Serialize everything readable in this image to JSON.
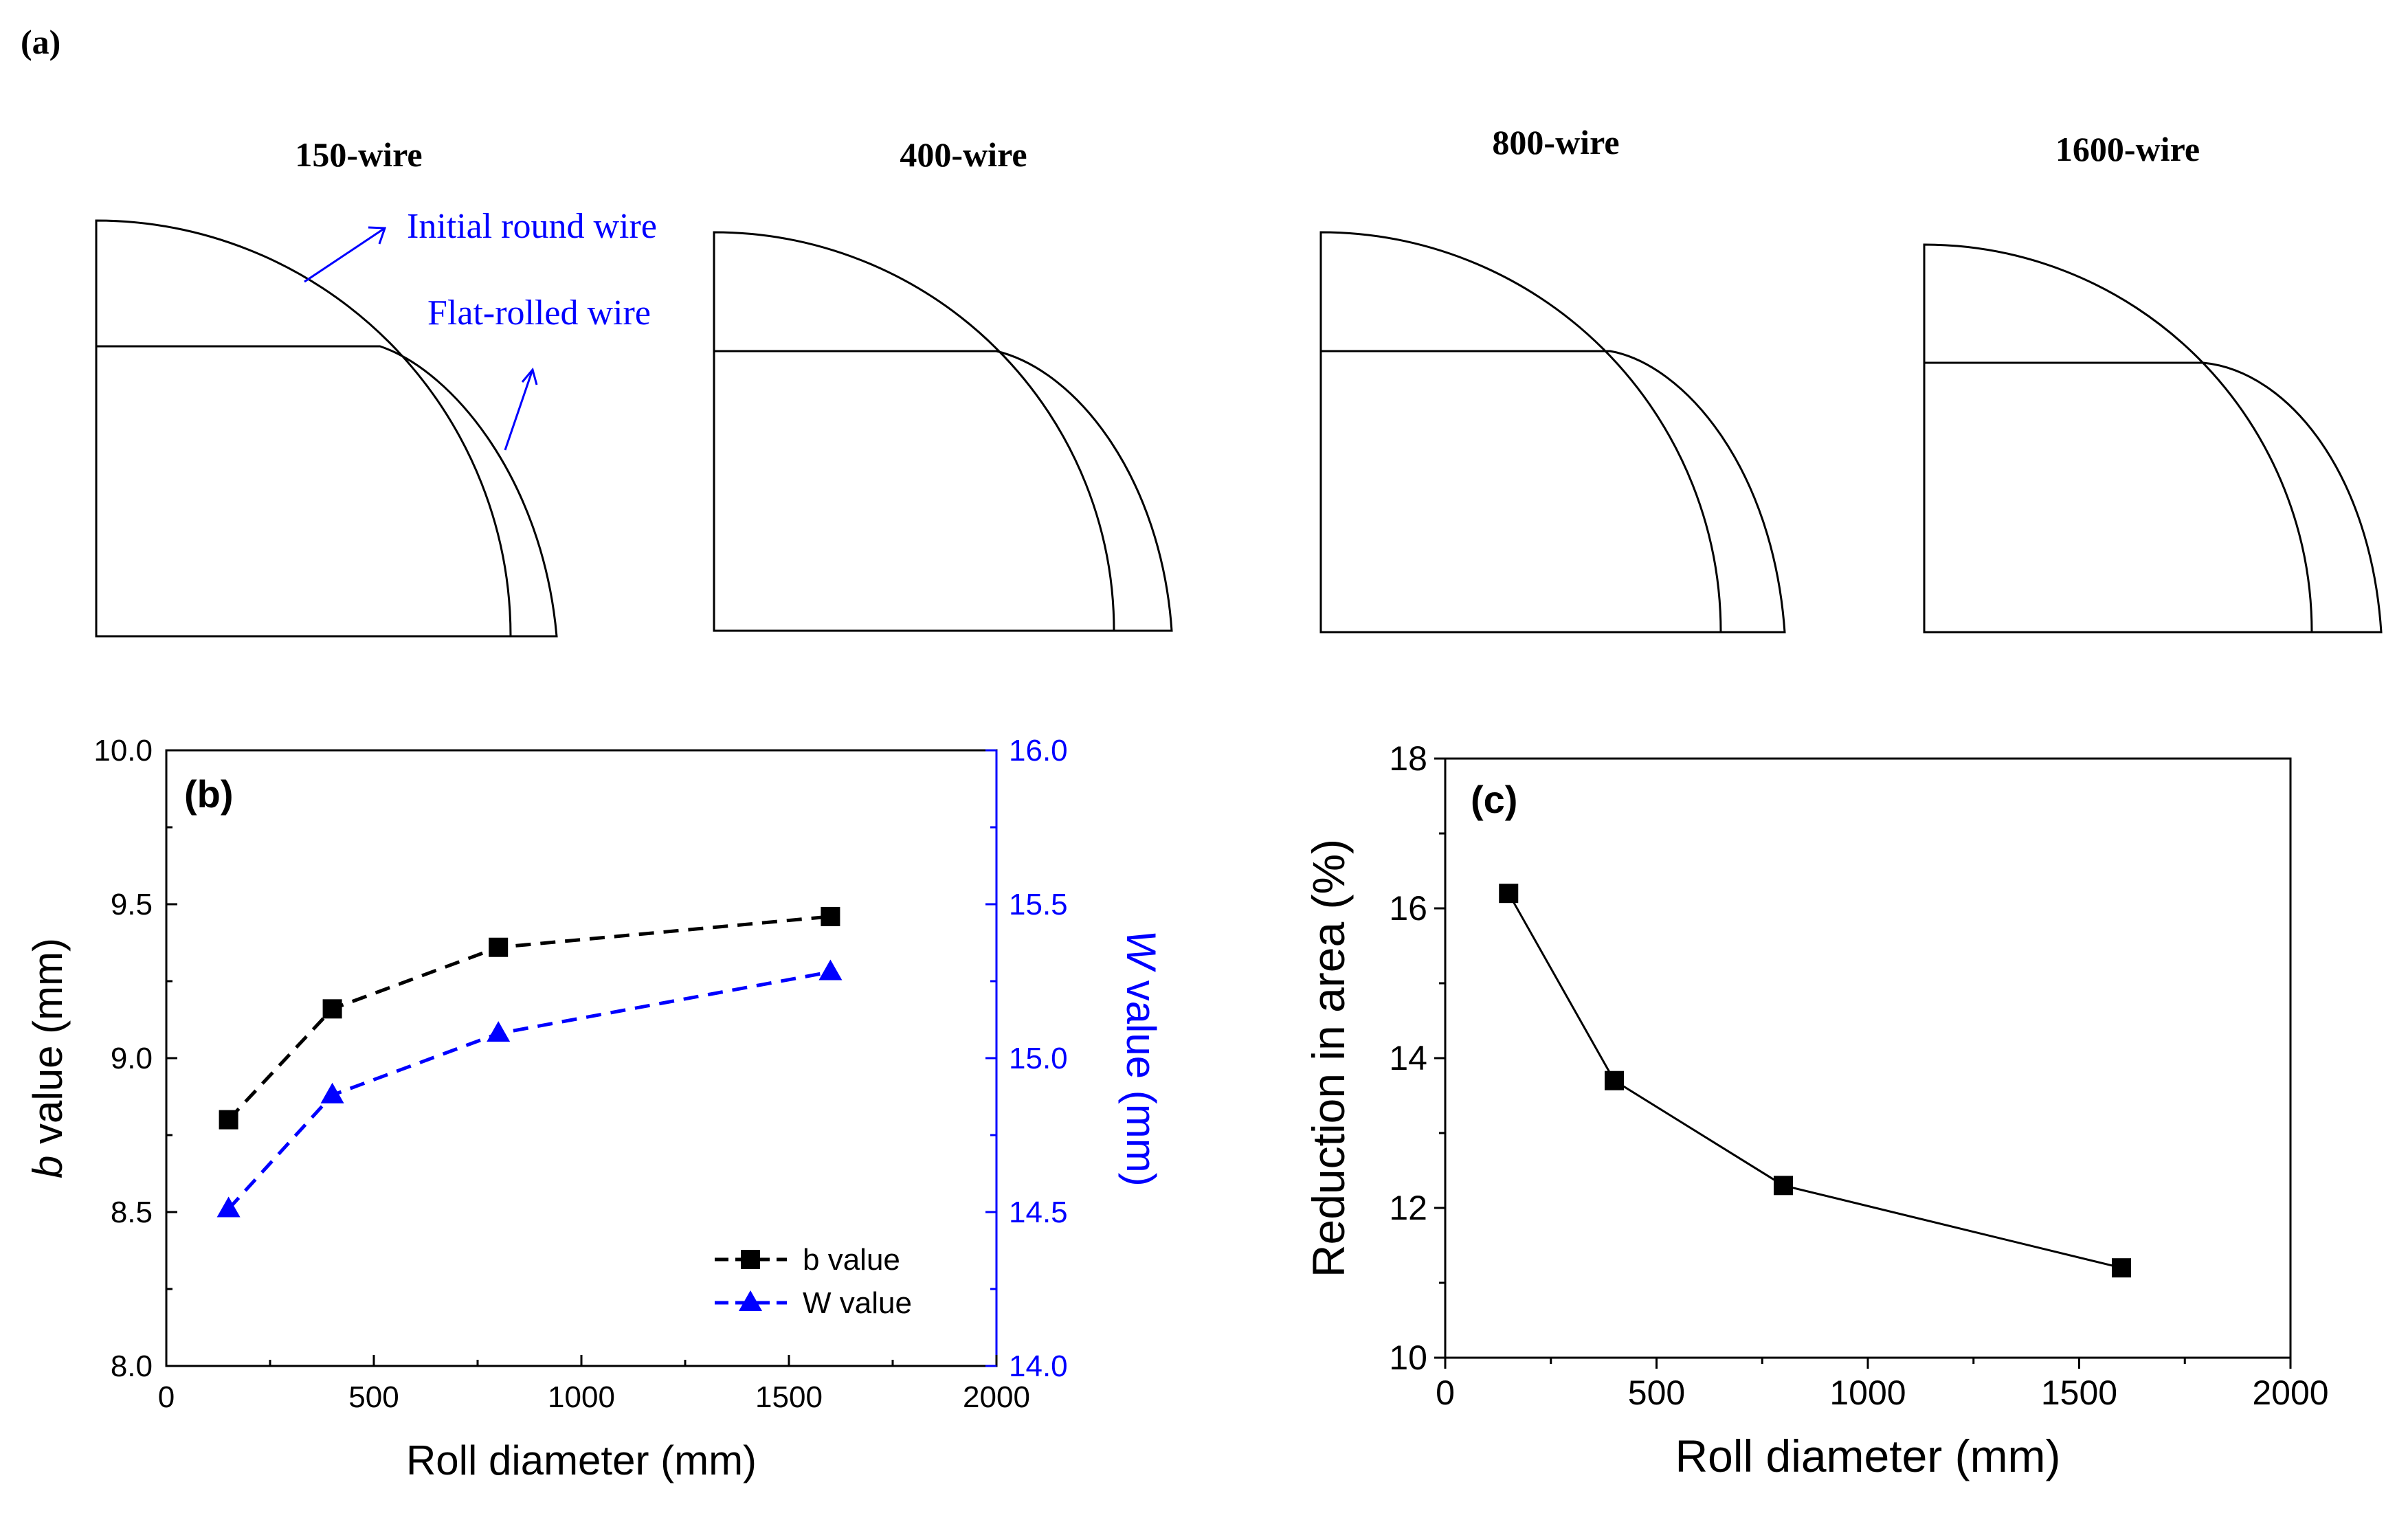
{
  "panel_a": {
    "label": "(a)",
    "wires": [
      {
        "title": "150-wire"
      },
      {
        "title": "400-wire"
      },
      {
        "title": "800-wire"
      },
      {
        "title": "1600-wire"
      }
    ],
    "annotations": {
      "initial": "Initial round wire",
      "flat": "Flat-rolled wire"
    }
  },
  "chart_data": [
    {
      "id": "b",
      "type": "line",
      "panel_label": "(b)",
      "x": [
        150,
        400,
        800,
        1600
      ],
      "xlabel": "Roll diameter (mm)",
      "xlim": [
        0,
        2000
      ],
      "xticks": [
        0,
        500,
        1000,
        1500,
        2000
      ],
      "ylabel_italic": "b",
      "ylabel_rest": " value (mm)",
      "ylim": [
        8.0,
        10.0
      ],
      "yticks": [
        8.0,
        8.5,
        9.0,
        9.5,
        10.0
      ],
      "ylabel_right_italic": "W",
      "ylabel_right_rest": " value (mm)",
      "ylim_right": [
        14.0,
        16.0
      ],
      "yticks_right": [
        14.0,
        14.5,
        15.0,
        15.5,
        16.0
      ],
      "series": [
        {
          "name": "b value",
          "axis": "left",
          "values": [
            8.8,
            9.16,
            9.36,
            9.46
          ],
          "color": "#000000",
          "marker": "square",
          "dash": true
        },
        {
          "name": "W value",
          "axis": "right",
          "values": [
            14.51,
            14.88,
            15.08,
            15.28
          ],
          "color": "#0000ff",
          "marker": "triangle",
          "dash": true
        }
      ],
      "legend_position": "bottom-right"
    },
    {
      "id": "c",
      "type": "line",
      "panel_label": "(c)",
      "x": [
        150,
        400,
        800,
        1600
      ],
      "xlabel": "Roll diameter (mm)",
      "xlim": [
        0,
        2000
      ],
      "xticks": [
        0,
        500,
        1000,
        1500,
        2000
      ],
      "ylabel": "Reduction in area (%)",
      "ylim": [
        10,
        18
      ],
      "yticks": [
        10,
        12,
        14,
        16,
        18
      ],
      "series": [
        {
          "name": "Reduction in area",
          "values": [
            16.2,
            13.7,
            12.3,
            11.2
          ],
          "color": "#000000",
          "marker": "square",
          "dash": false
        }
      ]
    }
  ]
}
